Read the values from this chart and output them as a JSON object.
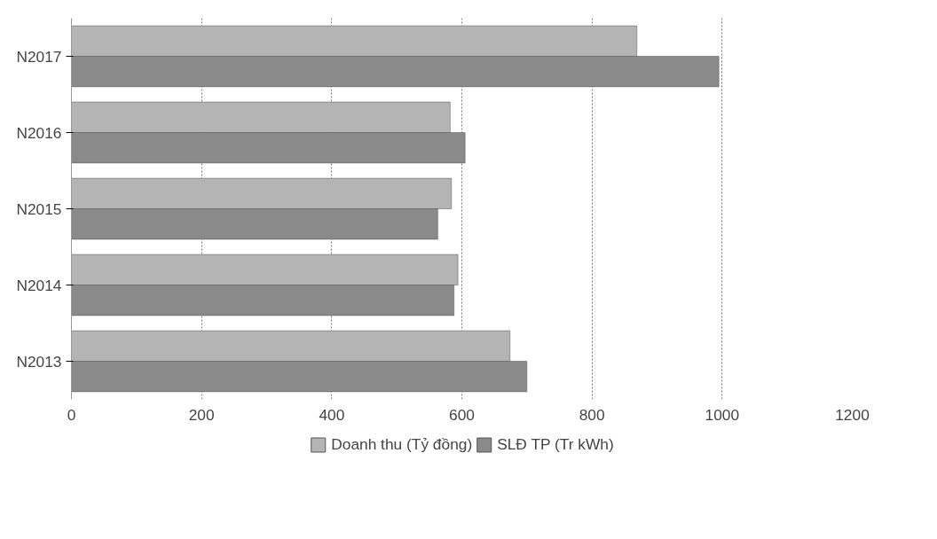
{
  "chart_data": {
    "type": "bar",
    "orientation": "horizontal",
    "categories": [
      "N2017",
      "N2016",
      "N2015",
      "N2014",
      "N2013"
    ],
    "series": [
      {
        "name": "Doanh thu (Tỷ đồng)",
        "color": "#b4b4b4",
        "values": [
          869,
          582,
          584,
          594,
          674
        ]
      },
      {
        "name": "SLĐ TP (Tr kWh)",
        "color": "#8a8a8a",
        "values": [
          995,
          605,
          563,
          588,
          700
        ]
      }
    ],
    "xlim": [
      0,
      1200
    ],
    "xticks": [
      0,
      200,
      400,
      600,
      800,
      1000,
      1200
    ],
    "grid": "x",
    "legend": "bottom"
  }
}
